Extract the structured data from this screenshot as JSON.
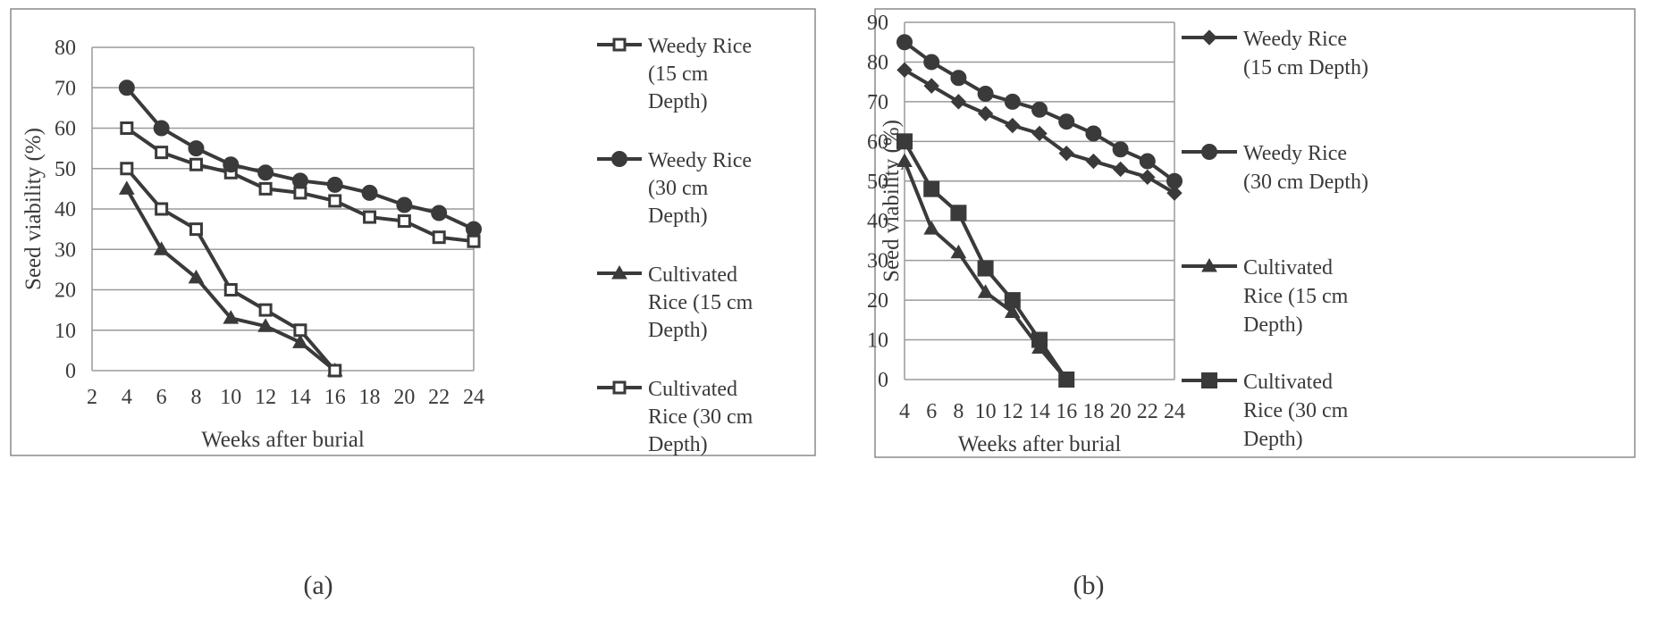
{
  "chart_data": [
    {
      "type": "line",
      "panel_label": "(a)",
      "xlabel": "Weeks after burial",
      "ylabel": "Seed viability (%)",
      "xlim": [
        2,
        24
      ],
      "ylim": [
        0,
        80
      ],
      "x_ticks": [
        "2",
        "4",
        "6",
        "8",
        "10",
        "12",
        "14",
        "16",
        "18",
        "20",
        "22",
        "24"
      ],
      "y_ticks": [
        "0",
        "10",
        "20",
        "30",
        "40",
        "50",
        "60",
        "70",
        "80"
      ],
      "grid": "horizontal",
      "legend_position": "right",
      "series": [
        {
          "name": "Weedy Rice (15 cm Depth)",
          "legend_lines": [
            "Weedy Rice",
            "(15 cm",
            "Depth)"
          ],
          "marker": "square-open",
          "x": [
            4,
            6,
            8,
            10,
            12,
            14,
            16,
            18,
            20,
            22,
            24
          ],
          "values": [
            60,
            54,
            51,
            49,
            45,
            44,
            42,
            38,
            37,
            33,
            32
          ]
        },
        {
          "name": "Weedy Rice (30 cm Depth)",
          "legend_lines": [
            "Weedy Rice",
            "(30 cm",
            "Depth)"
          ],
          "marker": "circle",
          "x": [
            4,
            6,
            8,
            10,
            12,
            14,
            16,
            18,
            20,
            22,
            24
          ],
          "values": [
            70,
            60,
            55,
            51,
            49,
            47,
            46,
            44,
            41,
            39,
            35
          ]
        },
        {
          "name": "Cultivated Rice (15 cm Depth)",
          "legend_lines": [
            "Cultivated",
            "Rice (15 cm",
            "Depth)"
          ],
          "marker": "triangle",
          "x": [
            4,
            6,
            8,
            10,
            12,
            14,
            16
          ],
          "values": [
            45,
            30,
            23,
            13,
            11,
            7,
            0
          ]
        },
        {
          "name": "Cultivated Rice (30 cm Depth)",
          "legend_lines": [
            "Cultivated",
            "Rice (30 cm",
            "Depth)"
          ],
          "marker": "square-open",
          "x": [
            4,
            6,
            8,
            10,
            12,
            14,
            16
          ],
          "values": [
            50,
            40,
            35,
            20,
            15,
            10,
            0
          ]
        }
      ]
    },
    {
      "type": "line",
      "panel_label": "(b)",
      "xlabel": "Weeks after burial",
      "ylabel": "Seed viability (%)",
      "xlim": [
        4,
        24
      ],
      "ylim": [
        0,
        90
      ],
      "x_ticks": [
        "4",
        "6",
        "8",
        "10",
        "12",
        "14",
        "16",
        "18",
        "20",
        "22",
        "24"
      ],
      "y_ticks": [
        "0",
        "10",
        "20",
        "30",
        "40",
        "50",
        "60",
        "70",
        "80",
        "90"
      ],
      "grid": "horizontal",
      "legend_position": "right",
      "series": [
        {
          "name": "Weedy Rice (15 cm Depth)",
          "legend_lines": [
            "Weedy Rice",
            "(15 cm Depth)"
          ],
          "marker": "diamond",
          "x": [
            4,
            6,
            8,
            10,
            12,
            14,
            16,
            18,
            20,
            22,
            24
          ],
          "values": [
            78,
            74,
            70,
            67,
            64,
            62,
            57,
            55,
            53,
            51,
            47
          ]
        },
        {
          "name": "Weedy Rice (30 cm Depth)",
          "legend_lines": [
            "Weedy Rice",
            "(30 cm Depth)"
          ],
          "marker": "circle",
          "x": [
            4,
            6,
            8,
            10,
            12,
            14,
            16,
            18,
            20,
            22,
            24
          ],
          "values": [
            85,
            80,
            76,
            72,
            70,
            68,
            65,
            62,
            58,
            55,
            50
          ]
        },
        {
          "name": "Cultivated Rice (15 cm Depth)",
          "legend_lines": [
            "Cultivated",
            "Rice (15 cm",
            "Depth)"
          ],
          "marker": "triangle",
          "x": [
            4,
            6,
            8,
            10,
            12,
            14,
            16
          ],
          "values": [
            55,
            38,
            32,
            22,
            17,
            8,
            0
          ]
        },
        {
          "name": "Cultivated Rice (30 cm Depth)",
          "legend_lines": [
            "Cultivated",
            "Rice (30 cm",
            "Depth)"
          ],
          "marker": "square",
          "x": [
            4,
            6,
            8,
            10,
            12,
            14,
            16
          ],
          "values": [
            60,
            48,
            42,
            28,
            20,
            10,
            0
          ]
        }
      ]
    }
  ],
  "style": {
    "line_color": "#3a3a3a",
    "grid_color": "#9a9a9a",
    "frame_color": "#8a8a8a",
    "background": "#ffffff"
  }
}
